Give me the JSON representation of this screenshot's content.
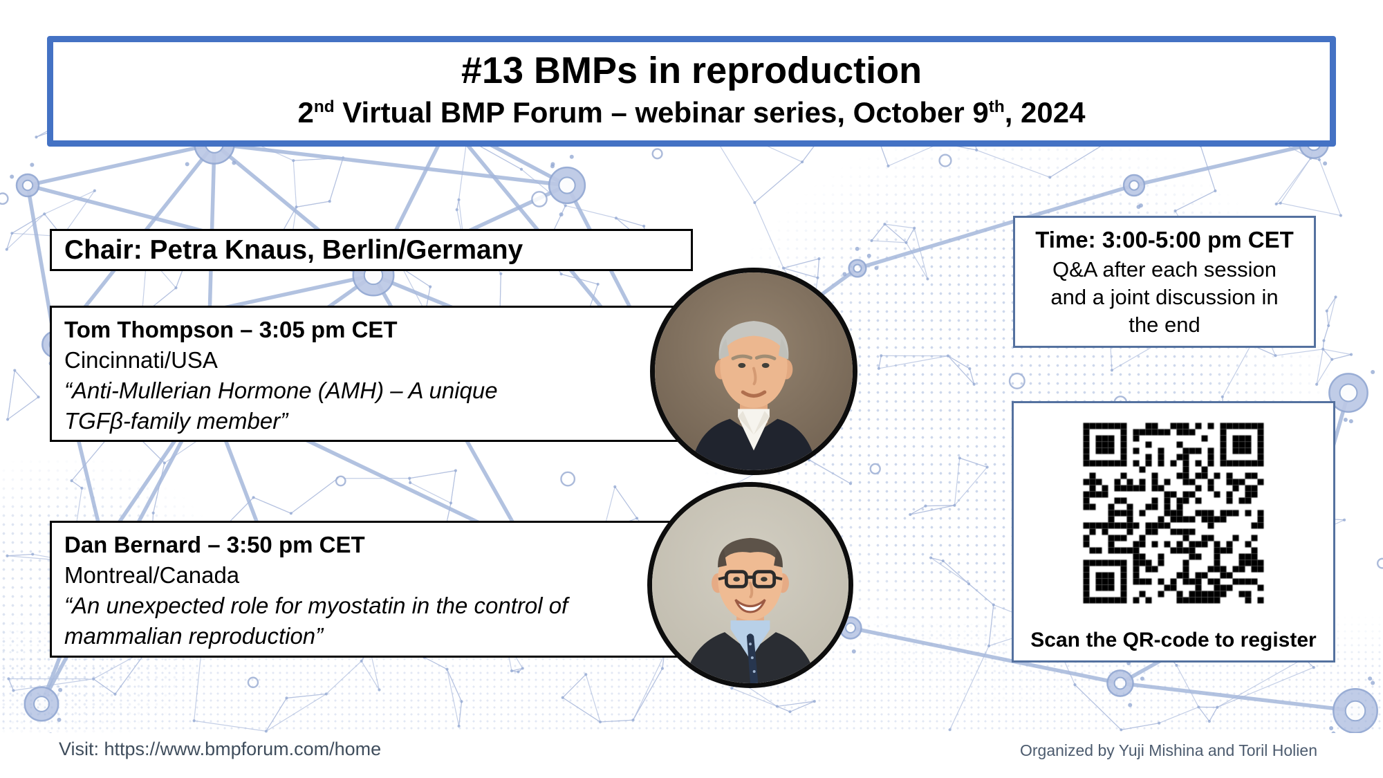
{
  "title_box": {
    "title": "#13 BMPs in reproduction",
    "subtitle": {
      "part1": "2",
      "sup1": "nd",
      "part2": " Virtual BMP Forum – webinar series, October 9",
      "sup2": "th",
      "part3": ", 2024"
    }
  },
  "chair_box": {
    "label": "Chair: Petra Knaus, Berlin/Germany"
  },
  "speakers": [
    {
      "name_time": "Tom Thompson – 3:05 pm CET",
      "location": "Cincinnati/USA",
      "talk_lines": [
        "“Anti-Mullerian Hormone (AMH) – A unique",
        "TGFβ-family member”"
      ]
    },
    {
      "name_time": "Dan Bernard – 3:50 pm CET",
      "location": "Montreal/Canada",
      "talk_lines": [
        "“An unexpected role for myostatin in the control of",
        "mammalian reproduction”"
      ]
    }
  ],
  "info_box": {
    "time_line": "Time: 3:00-5:00 pm CET",
    "desc_lines": [
      "Q&A after each session",
      "and a joint discussion in",
      "the end"
    ]
  },
  "qr_box": {
    "caption": "Scan the QR-code to register"
  },
  "footer": {
    "left": "Visit: https://www.bmpforum.com/home",
    "right": "Organized by Yuji Mishina and Toril Holien"
  },
  "colors": {
    "title_border": "#4472c4",
    "info_border": "#54719f",
    "box_border": "#000000",
    "network_line": "#a9b8db",
    "network_node": "#8ca2cf",
    "network_ring_fill": "#b7c4e3",
    "footer_text": "#44546a",
    "qr_black": "#000000"
  }
}
